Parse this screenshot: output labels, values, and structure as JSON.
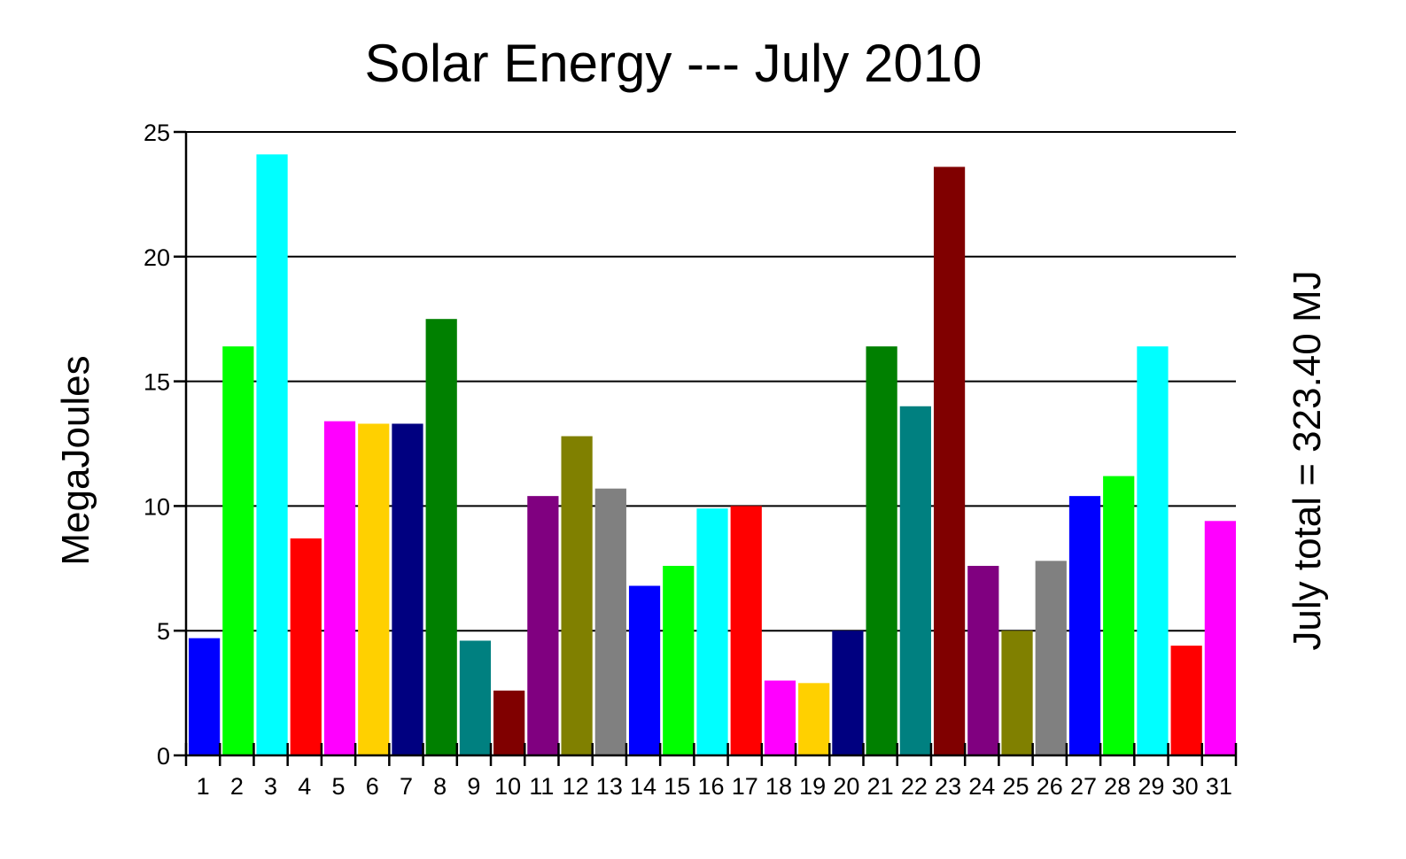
{
  "chart_data": {
    "type": "bar",
    "title": "Solar Energy --- July 2010",
    "ylabel": "MegaJoules",
    "right_label": "July total = 323.40 MJ",
    "categories": [
      "1",
      "2",
      "3",
      "4",
      "5",
      "6",
      "7",
      "8",
      "9",
      "10",
      "11",
      "12",
      "13",
      "14",
      "15",
      "16",
      "17",
      "18",
      "19",
      "20",
      "21",
      "22",
      "23",
      "24",
      "25",
      "26",
      "27",
      "28",
      "29",
      "30",
      "31"
    ],
    "values": [
      4.7,
      16.4,
      24.1,
      8.7,
      13.4,
      13.3,
      13.3,
      17.5,
      4.6,
      2.6,
      10.4,
      12.8,
      10.7,
      6.8,
      7.6,
      9.9,
      10.0,
      3.0,
      2.9,
      5.0,
      16.4,
      14.0,
      23.6,
      7.6,
      5.0,
      7.8,
      10.4,
      11.2,
      16.4,
      4.4,
      9.4
    ],
    "colors": [
      "#0000FF",
      "#00FF00",
      "#00FFFF",
      "#FF0000",
      "#FF00FF",
      "#FFD000",
      "#000080",
      "#008000",
      "#008080",
      "#800000",
      "#800080",
      "#808000",
      "#808080",
      "#0000FF",
      "#00FF00",
      "#00FFFF",
      "#FF0000",
      "#FF00FF",
      "#FFD000",
      "#000080",
      "#008000",
      "#008080",
      "#800000",
      "#800080",
      "#808000",
      "#808080",
      "#0000FF",
      "#00FF00",
      "#00FFFF",
      "#FF0000",
      "#FF00FF"
    ],
    "ylim": [
      0,
      25
    ],
    "yticks": [
      "0",
      "5",
      "10",
      "15",
      "20",
      "25"
    ],
    "grid": true
  }
}
